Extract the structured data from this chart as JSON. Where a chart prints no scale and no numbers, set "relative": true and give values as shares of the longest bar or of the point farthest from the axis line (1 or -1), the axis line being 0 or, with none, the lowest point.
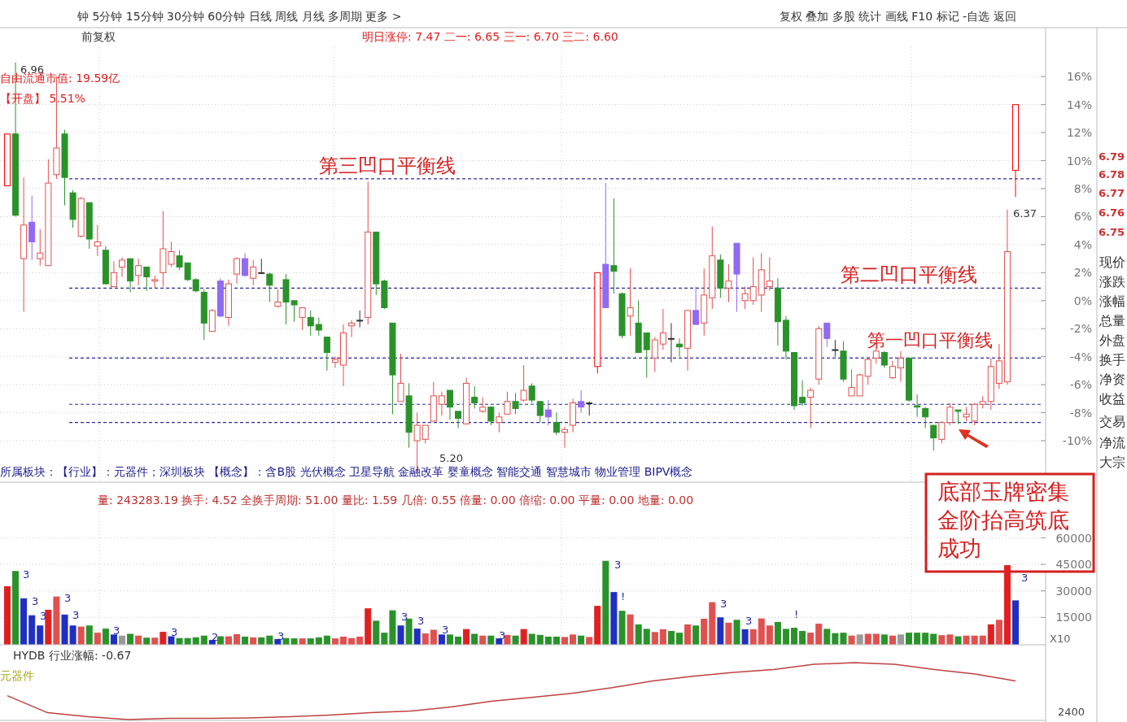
{
  "chart_data": [
    {
      "type": "candlestick",
      "categories": [
        null,
        null,
        null,
        null,
        null,
        null,
        null,
        null,
        null,
        null,
        null,
        null,
        null,
        null,
        null,
        null,
        null,
        null,
        null,
        null,
        null,
        null,
        null,
        null,
        null,
        null,
        null,
        null,
        null,
        null,
        null,
        null,
        null,
        null,
        null,
        null,
        null,
        null,
        null,
        null,
        null,
        null,
        null,
        null,
        null,
        null,
        null,
        null,
        null,
        null,
        null,
        null,
        null,
        null,
        null,
        null,
        null,
        null,
        null,
        null,
        null,
        null,
        null,
        null,
        null,
        null,
        null,
        null,
        null,
        null,
        null,
        null,
        null,
        null,
        null,
        null,
        null,
        null,
        null,
        null,
        null,
        null,
        null,
        null,
        null,
        null,
        null,
        null,
        null,
        null,
        null,
        null,
        null,
        null,
        null,
        null,
        null,
        null,
        null,
        null,
        null,
        null,
        null,
        null,
        null,
        null,
        null,
        null,
        null,
        null,
        null,
        null,
        null,
        null,
        null,
        null,
        null,
        null,
        null,
        null,
        null,
        null,
        null,
        null
      ],
      "ohlc": [
        [
          8.2,
          11.9,
          8.2,
          11.9
        ],
        [
          11.9,
          17.0,
          6.0,
          6.1
        ],
        [
          3.0,
          8.8,
          -0.8,
          5.4
        ],
        [
          5.6,
          7.5,
          2.9,
          4.2
        ],
        [
          3.0,
          5.1,
          2.5,
          3.4
        ],
        [
          2.5,
          10.1,
          2.5,
          8.4
        ],
        [
          9.0,
          16.0,
          8.7,
          10.9
        ],
        [
          11.9,
          12.2,
          6.8,
          8.8
        ],
        [
          7.7,
          7.9,
          5.2,
          5.8
        ],
        [
          4.6,
          7.4,
          4.5,
          7.3
        ],
        [
          7.0,
          7.0,
          3.7,
          4.4
        ],
        [
          3.9,
          5.4,
          3.2,
          4.2
        ],
        [
          3.6,
          3.9,
          1.2,
          1.2
        ],
        [
          1.0,
          2.8,
          1.0,
          2.0
        ],
        [
          2.4,
          3.1,
          1.7,
          2.9
        ],
        [
          3.0,
          3.0,
          0.6,
          1.4
        ],
        [
          1.8,
          3.0,
          1.1,
          2.5
        ],
        [
          2.4,
          2.4,
          0.7,
          1.7
        ],
        [
          1.4,
          1.8,
          0.9,
          1.5
        ],
        [
          2.0,
          6.4,
          1.0,
          3.7
        ],
        [
          2.6,
          4.2,
          2.4,
          3.5
        ],
        [
          3.2,
          3.6,
          2.2,
          2.4
        ],
        [
          2.7,
          2.7,
          1.4,
          1.5
        ],
        [
          1.5,
          1.6,
          0.6,
          0.7
        ],
        [
          0.6,
          0.8,
          -2.8,
          -1.6
        ],
        [
          -2.2,
          -0.6,
          -2.2,
          -0.7
        ],
        [
          1.4,
          1.6,
          -1.2,
          -1.1
        ],
        [
          -1.2,
          1.5,
          -1.8,
          1.2
        ],
        [
          1.9,
          3.1,
          1.2,
          3.0
        ],
        [
          3.0,
          3.4,
          1.7,
          1.8
        ],
        [
          1.6,
          2.9,
          1.1,
          2.4
        ],
        [
          2.0,
          3.0,
          1.9,
          2.0
        ],
        [
          1.9,
          2.0,
          -0.1,
          1.1
        ],
        [
          -0.4,
          0.8,
          -0.5,
          -0.1
        ],
        [
          1.5,
          1.9,
          -1.7,
          -0.1
        ],
        [
          0.0,
          0.0,
          -1.5,
          -0.3
        ],
        [
          -1.2,
          -0.5,
          -2.1,
          -0.5
        ],
        [
          -1.2,
          -0.7,
          -2.5,
          -1.8
        ],
        [
          -1.7,
          -1.2,
          -2.5,
          -2.1
        ],
        [
          -2.6,
          -2.6,
          -5.0,
          -3.7
        ],
        [
          -4.4,
          -4.0,
          -4.8,
          -4.2
        ],
        [
          -4.6,
          -1.7,
          -6.1,
          -2.3
        ],
        [
          -1.8,
          -1.4,
          -2.6,
          -1.6
        ],
        [
          -1.4,
          -0.7,
          -1.9,
          -1.4
        ],
        [
          -1.2,
          8.5,
          -1.7,
          4.9
        ],
        [
          4.9,
          4.9,
          0.4,
          1.2
        ],
        [
          1.4,
          1.5,
          -0.6,
          -0.5
        ],
        [
          -1.6,
          -1.6,
          -8.1,
          -5.3
        ],
        [
          -7.2,
          -3.8,
          -7.2,
          -5.9
        ],
        [
          -6.8,
          -5.9,
          -10.5,
          -9.4
        ],
        [
          -10.0,
          -8.0,
          -12.2,
          -8.9
        ],
        [
          -9.9,
          -8.9,
          -10.2,
          -8.9
        ],
        [
          -8.6,
          -5.8,
          -8.6,
          -6.8
        ],
        [
          -7.4,
          -6.5,
          -8.2,
          -6.8
        ],
        [
          -6.4,
          -6.4,
          -8.5,
          -7.6
        ],
        [
          -7.9,
          -7.9,
          -9.1,
          -8.4
        ],
        [
          -8.8,
          -5.5,
          -8.8,
          -5.9
        ],
        [
          -6.9,
          -6.1,
          -7.7,
          -7.3
        ],
        [
          -7.9,
          -6.9,
          -8.0,
          -7.6
        ],
        [
          -7.6,
          -7.6,
          -8.9,
          -8.6
        ],
        [
          -8.7,
          -8.0,
          -9.4,
          -8.3
        ],
        [
          -8.1,
          -6.5,
          -8.1,
          -7.2
        ],
        [
          -7.2,
          -6.6,
          -8.1,
          -7.7
        ],
        [
          -7.1,
          -4.6,
          -7.2,
          -6.4
        ],
        [
          -6.1,
          -5.9,
          -7.3,
          -7.1
        ],
        [
          -7.2,
          -7.2,
          -8.7,
          -8.2
        ],
        [
          -7.8,
          -7.1,
          -8.9,
          -8.3
        ],
        [
          -8.7,
          -8.0,
          -9.6,
          -9.4
        ],
        [
          -9.4,
          -9.0,
          -10.5,
          -9.2
        ],
        [
          -8.9,
          -7.0,
          -9.4,
          -7.3
        ],
        [
          -7.2,
          -6.4,
          -8.0,
          -7.6
        ],
        [
          -7.3,
          -7.2,
          -8.2,
          -7.3
        ],
        [
          -4.7,
          2.0,
          -5.2,
          2.0
        ],
        [
          2.6,
          8.4,
          -0.5,
          -0.5
        ],
        [
          2.5,
          7.3,
          0.5,
          2.1
        ],
        [
          0.5,
          0.6,
          -2.7,
          -2.5
        ],
        [
          -1.1,
          2.3,
          -2.5,
          -0.5
        ],
        [
          -1.6,
          0.0,
          -3.7,
          -3.7
        ],
        [
          -2.3,
          -2.3,
          -5.5,
          -3.5
        ],
        [
          -4.1,
          -2.6,
          -5.1,
          -2.8
        ],
        [
          -3.1,
          -0.6,
          -3.5,
          -2.3
        ],
        [
          -2.7,
          -1.6,
          -4.4,
          -2.7
        ],
        [
          -3.1,
          -2.7,
          -4.0,
          -3.3
        ],
        [
          -3.4,
          -0.7,
          -5.0,
          -0.7
        ],
        [
          -0.7,
          1.0,
          -1.7,
          -1.7
        ],
        [
          -1.6,
          2.3,
          -2.5,
          0.4
        ],
        [
          0.2,
          5.3,
          -0.6,
          3.2
        ],
        [
          2.9,
          3.3,
          0.2,
          0.9
        ],
        [
          0.9,
          2.6,
          -0.1,
          1.4
        ],
        [
          4.1,
          4.1,
          -0.8,
          1.9
        ],
        [
          0.0,
          1.0,
          -0.6,
          0.5
        ],
        [
          0.0,
          3.1,
          -0.3,
          1.0
        ],
        [
          0.4,
          3.4,
          -0.8,
          2.2
        ],
        [
          1.0,
          3.1,
          0.7,
          1.4
        ],
        [
          0.9,
          1.6,
          -3.2,
          -1.5
        ],
        [
          -1.4,
          -1.1,
          -4.2,
          -3.6
        ],
        [
          -3.7,
          -3.7,
          -7.8,
          -7.5
        ],
        [
          -6.9,
          -5.7,
          -7.5,
          -7.3
        ],
        [
          -6.9,
          -6.2,
          -9.1,
          -6.4
        ],
        [
          -5.6,
          -1.8,
          -6.0,
          -2.0
        ],
        [
          -1.6,
          -1.6,
          -3.3,
          -2.7
        ],
        [
          -3.5,
          -2.8,
          -4.0,
          -3.5
        ],
        [
          -3.6,
          -2.9,
          -5.8,
          -5.6
        ],
        [
          -6.8,
          -4.9,
          -6.8,
          -6.2
        ],
        [
          -6.8,
          -5.2,
          -6.8,
          -5.3
        ],
        [
          -5.4,
          -4.0,
          -6.0,
          -4.2
        ],
        [
          -4.1,
          -3.3,
          -4.5,
          -3.6
        ],
        [
          -3.7,
          -3.6,
          -4.8,
          -4.6
        ],
        [
          -5.5,
          -4.3,
          -5.6,
          -4.7
        ],
        [
          -4.8,
          -3.6,
          -5.8,
          -4.1
        ],
        [
          -4.1,
          -4.1,
          -7.2,
          -7.1
        ],
        [
          -7.5,
          -6.7,
          -8.3,
          -7.6
        ],
        [
          -7.7,
          -7.6,
          -9.1,
          -8.3
        ],
        [
          -8.9,
          -8.9,
          -10.7,
          -9.8
        ],
        [
          -9.9,
          -8.6,
          -10.2,
          -8.7
        ],
        [
          -8.7,
          -7.3,
          -8.9,
          -7.6
        ],
        [
          -7.8,
          -7.8,
          -8.8,
          -7.9
        ],
        [
          -8.3,
          -7.6,
          -8.6,
          -8.1
        ],
        [
          -8.6,
          -7.3,
          -8.9,
          -7.4
        ],
        [
          -7.4,
          -6.8,
          -7.7,
          -7.2
        ],
        [
          -7.2,
          -4.1,
          -7.8,
          -4.7
        ],
        [
          -5.9,
          -3.1,
          -6.3,
          -4.3
        ],
        [
          -5.8,
          6.5,
          -6.0,
          3.5
        ],
        [
          9.3,
          14.0,
          7.4,
          14.0
        ]
      ],
      "colors": [
        "#ff0000",
        "#2a922a",
        "#e0504f",
        "#8f6af2",
        "#e0504f",
        "#e0504f",
        "#e0504f",
        "#2a922a",
        "#2a922a",
        "#e0504f",
        "#2a922a",
        "#e0504f",
        "#2a922a",
        "#e0504f",
        "#e0504f",
        "#2a922a",
        "#e0504f",
        "#2a922a",
        "#e0504f",
        "#e0504f",
        "#e0504f",
        "#2a922a",
        "#2a922a",
        "#2a922a",
        "#2a922a",
        "#e0504f",
        "#8f6af2",
        "#e0504f",
        "#e0504f",
        "#8f6af2",
        "#e0504f",
        "#333333",
        "#2a922a",
        "#e0504f",
        "#2a922a",
        "#2a922a",
        "#e0504f",
        "#2a922a",
        "#2a922a",
        "#2a922a",
        "#e0504f",
        "#e0504f",
        "#e0504f",
        "#333333",
        "#e0504f",
        "#2a922a",
        "#2a922a",
        "#2a922a",
        "#e0504f",
        "#2a922a",
        "#e0504f",
        "#e0504f",
        "#e0504f",
        "#e0504f",
        "#2a922a",
        "#2a922a",
        "#e0504f",
        "#2a922a",
        "#e0504f",
        "#2a922a",
        "#e0504f",
        "#e0504f",
        "#2a922a",
        "#e0504f",
        "#2a922a",
        "#2a922a",
        "#8f6af2",
        "#2a922a",
        "#e0504f",
        "#e0504f",
        "#8f6af2",
        "#333333",
        "#ff0000",
        "#8f6af2",
        "#2a922a",
        "#2a922a",
        "#e0504f",
        "#2a922a",
        "#2a922a",
        "#e0504f",
        "#e0504f",
        "#333333",
        "#2a922a",
        "#e0504f",
        "#8f6af2",
        "#e0504f",
        "#e0504f",
        "#2a922a",
        "#e0504f",
        "#8f6af2",
        "#e0504f",
        "#e0504f",
        "#e0504f",
        "#e0504f",
        "#2a922a",
        "#2a922a",
        "#2a922a",
        "#2a922a",
        "#e0504f",
        "#e0504f",
        "#8f6af2",
        "#333333",
        "#2a922a",
        "#e0504f",
        "#e0504f",
        "#e0504f",
        "#e0504f",
        "#2a922a",
        "#e0504f",
        "#e0504f",
        "#2a922a",
        "#2a922a",
        "#2a922a",
        "#2a922a",
        "#e0504f",
        "#e0504f",
        "#2a922a",
        "#e0504f",
        "#e0504f",
        "#e0504f",
        "#e0504f",
        "#e0504f",
        "#e0504f",
        "#ff0000"
      ],
      "ylim": [
        -12.9,
        18.1
      ],
      "yticks": [
        {
          "value": -10,
          "label": "-10%"
        },
        {
          "value": -8,
          "label": "-8%"
        },
        {
          "value": -6,
          "label": "-6%"
        },
        {
          "value": -4,
          "label": "-4%"
        },
        {
          "value": -2,
          "label": "-2%"
        },
        {
          "value": 0,
          "label": "0%"
        },
        {
          "value": 2,
          "label": "2%"
        },
        {
          "value": 4,
          "label": "4%"
        },
        {
          "value": 6,
          "label": "6%"
        },
        {
          "value": 8,
          "label": "8%"
        },
        {
          "value": 10,
          "label": "10%"
        },
        {
          "value": 12,
          "label": "12%"
        },
        {
          "value": 14,
          "label": "14%"
        },
        {
          "value": 16,
          "label": "16%"
        }
      ],
      "grid": true,
      "ref_lines": [
        {
          "axis": "y",
          "value": 8.7,
          "label": "第三凹口平衡线",
          "color": "#2b2b9a",
          "line_style": "dashed"
        },
        {
          "axis": "y",
          "value": 0.9,
          "label": "第二凹口平衡线",
          "color": "#2b2b9a",
          "line_style": "dashed"
        },
        {
          "axis": "y",
          "value": -4.1,
          "label": "第一凹口平衡线",
          "color": "#2b2b9a",
          "line_style": "dashed"
        },
        {
          "axis": "y",
          "value": -7.4,
          "label": null,
          "color": "#2b2b9a",
          "line_style": "dashed"
        },
        {
          "axis": "y",
          "value": -8.7,
          "label": null,
          "color": "#2b2b9a",
          "line_style": "dashed"
        }
      ],
      "annotations": [
        "钟 5分钟 15分钟 30分钟 60分钟 日线 周线 月线 多周期 更多 >",
        "复权 叠加 多股 统计 画线 F10 标记 -自选 返回",
        "前复权",
        "明日涨停: 7.47 二一: 6.65 三一: 6.70 三二: 6.60",
        "自由流通市值: 19.59亿",
        "【开盘】 5.51%",
        "所属板块：【行业】：元器件；深圳板块 【概念】：含B股 光伏概念 卫星导航 金融改革 婴童概念 智能交通 智慧城市 物业管理 BIPV概念",
        "底部玉牌密集金阶抬高筑底成功",
        "6.79",
        "6.78",
        "6.77",
        "6.76",
        "6.75",
        "现价",
        "涨跌",
        "涨幅",
        "总量",
        "外盘",
        "换手",
        "净资",
        "收益",
        "交易",
        "净流",
        "大宗",
        "6.96",
        "5.20",
        "6.37"
      ]
    },
    {
      "type": "bar",
      "categories": [
        null,
        null,
        null,
        null,
        null,
        null,
        null,
        null,
        null,
        null,
        null,
        null,
        null,
        null,
        null,
        null,
        null,
        null,
        null,
        null,
        null,
        null,
        null,
        null,
        null,
        null,
        null,
        null,
        null,
        null,
        null,
        null,
        null,
        null,
        null,
        null,
        null,
        null,
        null,
        null,
        null,
        null,
        null,
        null,
        null,
        null,
        null,
        null,
        null,
        null,
        null,
        null,
        null,
        null,
        null,
        null,
        null,
        null,
        null,
        null,
        null,
        null,
        null,
        null,
        null,
        null,
        null,
        null,
        null,
        null,
        null,
        null,
        null,
        null,
        null,
        null,
        null,
        null,
        null,
        null,
        null,
        null,
        null,
        null,
        null,
        null,
        null,
        null,
        null,
        null,
        null,
        null,
        null,
        null,
        null,
        null,
        null,
        null,
        null,
        null,
        null,
        null,
        null,
        null,
        null,
        null,
        null,
        null,
        null,
        null,
        null,
        null,
        null,
        null,
        null,
        null,
        null,
        null,
        null,
        null,
        null,
        null,
        null,
        null
      ],
      "values": [
        32400,
        41000,
        25600,
        16000,
        10200,
        19100,
        26600,
        16400,
        10200,
        9600,
        10200,
        6100,
        8400,
        5100,
        4500,
        5500,
        4500,
        3300,
        3300,
        6600,
        4100,
        3100,
        3100,
        3500,
        4500,
        2000,
        4100,
        4100,
        5300,
        3900,
        3500,
        3500,
        4500,
        2500,
        3100,
        2900,
        2900,
        2900,
        3500,
        4500,
        2900,
        3900,
        3100,
        3900,
        19900,
        12900,
        6100,
        18800,
        10200,
        14100,
        8400,
        5700,
        7800,
        5100,
        5100,
        3900,
        8200,
        5500,
        4500,
        4500,
        2900,
        4900,
        4500,
        8200,
        5500,
        4900,
        3900,
        3900,
        3700,
        5100,
        4500,
        3700,
        21300,
        46800,
        29100,
        18500,
        16500,
        10800,
        8300,
        6500,
        8100,
        7100,
        6100,
        10800,
        10200,
        14000,
        23400,
        14800,
        11800,
        13400,
        8100,
        8100,
        14200,
        10200,
        12200,
        8300,
        8900,
        7100,
        6100,
        11200,
        8300,
        5900,
        6100,
        4500,
        5100,
        5500,
        5500,
        5100,
        4500,
        5100,
        6100,
        6100,
        6100,
        5500,
        4700,
        5100,
        4100,
        4500,
        4500,
        4500,
        10800,
        13400,
        44300,
        24400
      ],
      "colors": [
        "#e02020",
        "#2a922a",
        "#1f2fbf",
        "#1f2fbf",
        "#1f2fbf",
        "#e02020",
        "#e0504f",
        "#1f2fbf",
        "#1f2fbf",
        "#e0504f",
        "#2a922a",
        "#e0504f",
        "#2a922a",
        "#1f2fbf",
        "#999999",
        "#2a922a",
        "#e0504f",
        "#2a922a",
        "#e0504f",
        "#e02020",
        "#1f2fbf",
        "#2a922a",
        "#2a922a",
        "#2a922a",
        "#2a922a",
        "#1f2fbf",
        "#2a922a",
        "#e0504f",
        "#e0504f",
        "#2a922a",
        "#e0504f",
        "#2a922a",
        "#2a922a",
        "#1f2fbf",
        "#2a922a",
        "#2a922a",
        "#e0504f",
        "#2a922a",
        "#2a922a",
        "#2a922a",
        "#e0504f",
        "#e0504f",
        "#e0504f",
        "#e0504f",
        "#e02020",
        "#2a922a",
        "#2a922a",
        "#2a922a",
        "#1f2fbf",
        "#2a922a",
        "#1f2fbf",
        "#e0504f",
        "#e0504f",
        "#1f2fbf",
        "#2a922a",
        "#2a922a",
        "#e02020",
        "#2a922a",
        "#e0504f",
        "#2a922a",
        "#1f2fbf",
        "#e0504f",
        "#2a922a",
        "#e02020",
        "#2a922a",
        "#2a922a",
        "#2a922a",
        "#2a922a",
        "#e0504f",
        "#e0504f",
        "#2a922a",
        "#e0504f",
        "#e02020",
        "#2a922a",
        "#1f2fbf",
        "#2a922a",
        "#e0504f",
        "#2a922a",
        "#2a922a",
        "#e0504f",
        "#e0504f",
        "#2a922a",
        "#2a922a",
        "#e0504f",
        "#2a922a",
        "#e0504f",
        "#e0504f",
        "#1f2fbf",
        "#e0504f",
        "#2a922a",
        "#1f2fbf",
        "#e0504f",
        "#e0504f",
        "#e0504f",
        "#2a922a",
        "#2a922a",
        "#2a922a",
        "#2a922a",
        "#e0504f",
        "#e0504f",
        "#2a922a",
        "#2a922a",
        "#2a922a",
        "#e0504f",
        "#999999",
        "#e0504f",
        "#e0504f",
        "#2a922a",
        "#e0504f",
        "#999999",
        "#2a922a",
        "#2a922a",
        "#2a922a",
        "#2a922a",
        "#e0504f",
        "#e0504f",
        "#2a922a",
        "#e0504f",
        "#e0504f",
        "#e0504f",
        "#e02020",
        "#e0504f",
        "#e02020",
        "#1f2fbf"
      ],
      "ylim": [
        0,
        86000
      ],
      "yticks": [
        15000,
        30000,
        45000,
        60000
      ],
      "grid": true,
      "annotations": [
        "量: 243283.19 换手: 4.52 全换手周期: 51.00 量比: 1.59 几倍: 0.55 倍量: 0.00 倍缩: 0.00 平量: 0.00 地量: 0.00",
        "X10",
        "3",
        "3",
        "3",
        "3",
        "3",
        "3",
        "3",
        "2",
        "3",
        "3",
        "3",
        "3",
        "3",
        "3",
        "!",
        "3",
        "3",
        "!",
        "3"
      ]
    },
    {
      "type": "line",
      "categories": [
        null,
        null,
        null,
        null,
        null,
        null,
        null,
        null,
        null,
        null,
        null,
        null,
        null,
        null,
        null,
        null,
        null,
        null,
        null,
        null,
        null,
        null,
        null,
        null,
        null,
        null
      ],
      "values": [
        0.42,
        0.12,
        0.05,
        0,
        0.02,
        0.02,
        0.03,
        0.05,
        0.08,
        0.12,
        0.15,
        0.22,
        0.32,
        0.39,
        0.46,
        0.56,
        0.68,
        0.76,
        0.83,
        0.88,
        0.97,
        1.0,
        0.97,
        0.88,
        0.8,
        0.68
      ],
      "color": "#c04040",
      "relative": true,
      "annotations": [
        "HYDB 行业涨幅: -0.67",
        "元器件",
        "2400"
      ]
    }
  ]
}
